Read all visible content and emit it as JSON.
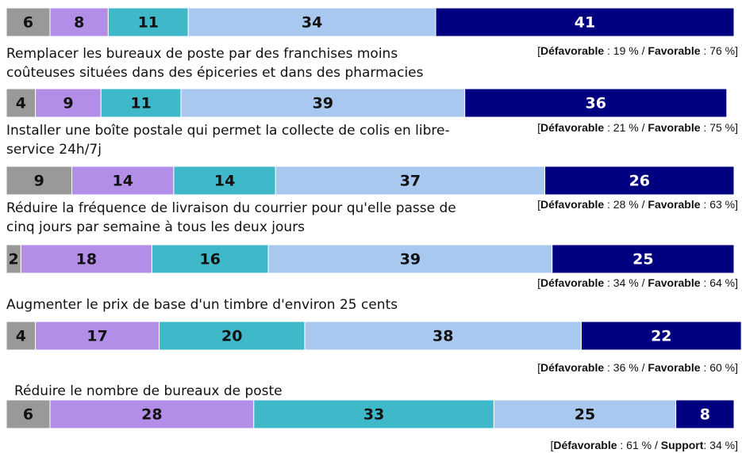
{
  "chart_data": {
    "type": "stacked_barh",
    "categories": [
      null,
      "Remplacer les bureaux de poste par des franchises moins coûteuses situées dans des épiceries et dans des pharmacies",
      "Installer une boîte postale qui permet la collecte de colis en libre-service 24h/7j",
      "Réduire la fréquence de livraison du courrier pour qu'elle passe de cinq jours par semaine à tous les deux jours",
      "Augmenter le prix de base d'un timbre d'environ 25 cents",
      "Réduire le nombre de bureaux de poste"
    ],
    "series": [
      {
        "color": "#999999",
        "values": [
          6,
          4,
          9,
          2,
          4,
          6
        ]
      },
      {
        "color": "#b28ee8",
        "values": [
          8,
          9,
          14,
          18,
          17,
          28
        ]
      },
      {
        "color": "#3fb8c9",
        "values": [
          11,
          11,
          14,
          16,
          20,
          33
        ]
      },
      {
        "color": "#a9c8ef",
        "values": [
          34,
          39,
          37,
          39,
          38,
          25
        ]
      },
      {
        "color": "#000080",
        "values": [
          41,
          36,
          26,
          25,
          22,
          8
        ]
      }
    ],
    "xlim": [
      0,
      100
    ],
    "annotations": [
      [
        "[",
        "Défavorable",
        " : 19 % / ",
        "Favorable",
        " : 76 %]"
      ],
      [
        "[",
        "Défavorable",
        " : 21 % / ",
        "Favorable",
        " : 75 %]"
      ],
      [
        "[",
        "Défavorable",
        " : 28 % / ",
        "Favorable",
        " : 63 %]"
      ],
      [
        "[",
        "Défavorable",
        " : 34 % / ",
        "Favorable",
        " : 64 %]"
      ],
      [
        "[",
        "Défavorable",
        " : 36 % / ",
        "Favorable",
        " : 60 %]"
      ],
      [
        "[",
        "Défavorable",
        " : 61 % / ",
        "Support",
        ": 34 %]"
      ]
    ]
  }
}
